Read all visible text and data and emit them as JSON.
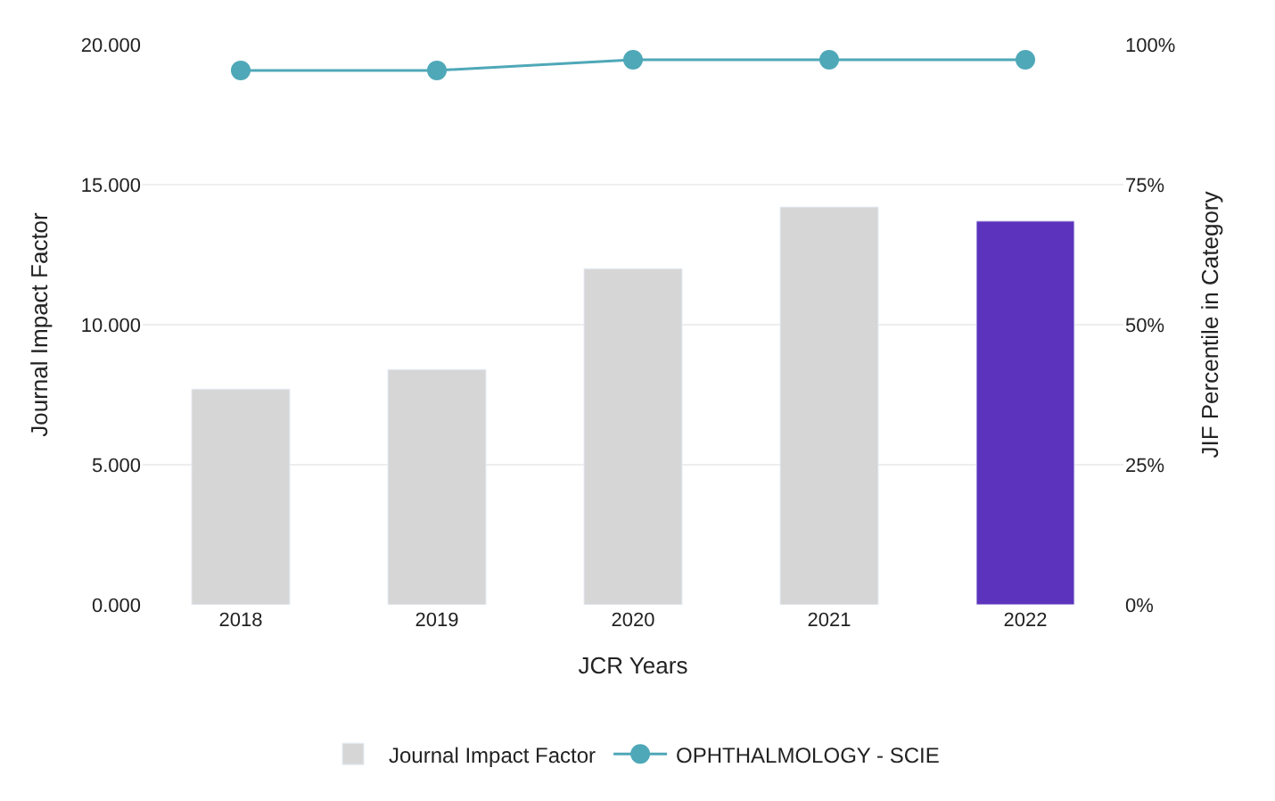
{
  "chart_data": {
    "type": "bar",
    "xlabel": "JCR Years",
    "ylabel": "Journal Impact Factor",
    "y2label": "JIF Percentile in Category",
    "categories": [
      "2018",
      "2019",
      "2020",
      "2021",
      "2022"
    ],
    "series": [
      {
        "name": "Journal Impact Factor",
        "color": "#d6d6d6",
        "colors": [
          "#d6d6d6",
          "#d6d6d6",
          "#d6d6d6",
          "#d6d6d6",
          "#5c33bd"
        ],
        "values": [
          7.7,
          8.4,
          12.0,
          14.2,
          13.7
        ]
      },
      {
        "name": "OPHTHALMOLOGY - SCIE",
        "type": "line",
        "axis": "y2",
        "color": "#4fa8b8",
        "marker": "circle",
        "values": [
          95.4,
          95.4,
          97.3,
          97.3,
          97.3
        ]
      }
    ],
    "ylim": [
      0,
      20
    ],
    "yticks": [
      {
        "value": 0,
        "label": "0.000"
      },
      {
        "value": 5,
        "label": "5.000"
      },
      {
        "value": 10,
        "label": "10.000"
      },
      {
        "value": 15,
        "label": "15.000"
      },
      {
        "value": 20,
        "label": "20.000"
      }
    ],
    "y2lim": [
      0,
      100
    ],
    "y2ticks": [
      {
        "value": 0,
        "label": "0%"
      },
      {
        "value": 25,
        "label": "25%"
      },
      {
        "value": 50,
        "label": "50%"
      },
      {
        "value": 75,
        "label": "75%"
      },
      {
        "value": 100,
        "label": "100%"
      }
    ],
    "grid": "y",
    "legend": "bottom"
  }
}
